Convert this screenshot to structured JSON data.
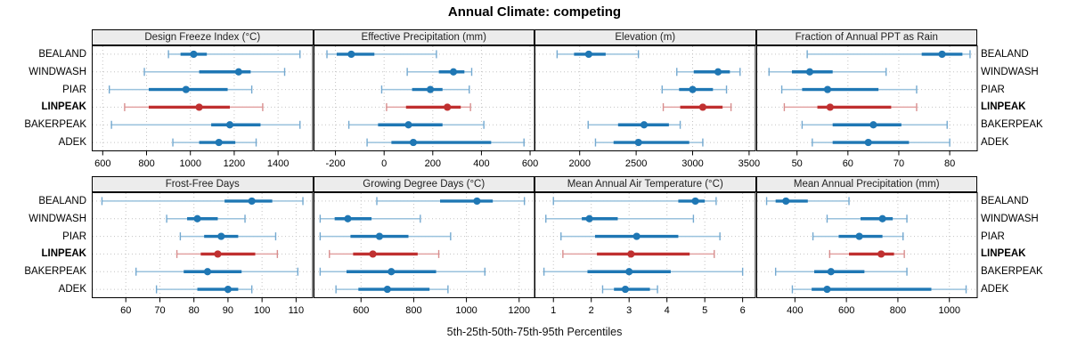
{
  "title": "Annual Climate: competing",
  "caption": "5th-25th-50th-75th-95th Percentiles",
  "colors": {
    "series": "#1f77b4",
    "series_light": "#9ac2dd",
    "series_cap": "#74a9d0",
    "highlight": "#c03030",
    "highlight_light": "#e3a2a2",
    "highlight_cap": "#d88e8e",
    "grid": "#c4c4c4",
    "panel_header_bg": "#ececec",
    "border": "#000000"
  },
  "chart_data": {
    "type": "dot-interval",
    "layout": "2x4 trellis, shared station rows, legend-free",
    "percentiles": [
      5,
      25,
      50,
      75,
      95
    ],
    "categories": [
      "BEALAND",
      "WINDWASH",
      "PIAR",
      "LINPEAK",
      "BAKERPEAK",
      "ADEK"
    ],
    "highlight_category": "LINPEAK",
    "panels": [
      {
        "id": "design-freeze-index",
        "title": "Design Freeze Index (°C)",
        "xlim": [
          550,
          1560
        ],
        "ticks": [
          600,
          800,
          1000,
          1200,
          1400
        ],
        "values": [
          [
            900,
            955,
            1015,
            1075,
            1500
          ],
          [
            790,
            1040,
            1220,
            1275,
            1430
          ],
          [
            630,
            810,
            980,
            1170,
            1280
          ],
          [
            700,
            810,
            1040,
            1180,
            1330
          ],
          [
            640,
            1095,
            1180,
            1320,
            1500
          ],
          [
            920,
            1040,
            1130,
            1205,
            1300
          ]
        ]
      },
      {
        "id": "effective-precipitation",
        "title": "Effective Precipitation (mm)",
        "xlim": [
          -290,
          620
        ],
        "ticks": [
          -200,
          0,
          200,
          400,
          600
        ],
        "values": [
          [
            -235,
            -195,
            -135,
            -40,
            215
          ],
          [
            95,
            225,
            285,
            330,
            360
          ],
          [
            -10,
            115,
            190,
            240,
            350
          ],
          [
            10,
            90,
            260,
            315,
            355
          ],
          [
            -145,
            -25,
            100,
            240,
            410
          ],
          [
            -70,
            30,
            120,
            440,
            575
          ]
        ]
      },
      {
        "id": "elevation",
        "title": "Elevation (m)",
        "xlim": [
          1600,
          3560
        ],
        "ticks": [
          2000,
          2500,
          3000,
          3500
        ],
        "values": [
          [
            1800,
            1950,
            2080,
            2230,
            2520
          ],
          [
            2860,
            3010,
            3225,
            3330,
            3420
          ],
          [
            2730,
            2880,
            3000,
            3180,
            3300
          ],
          [
            2740,
            2890,
            3090,
            3265,
            3340
          ],
          [
            2075,
            2340,
            2570,
            2790,
            2890
          ],
          [
            2140,
            2300,
            2520,
            2970,
            3090
          ]
        ]
      },
      {
        "id": "fraction-annual-ppt-as-rain",
        "title": "Fraction of Annual PPT as Rain",
        "xlim": [
          42,
          85.5
        ],
        "ticks": [
          50,
          60,
          70,
          80
        ],
        "values": [
          [
            52,
            74.5,
            78.5,
            82.5,
            84
          ],
          [
            44.5,
            49,
            52.5,
            57,
            67.5
          ],
          [
            47,
            51,
            56,
            66,
            73.5
          ],
          [
            47.5,
            54,
            56.5,
            68.5,
            73.5
          ],
          [
            51,
            57,
            65,
            70.5,
            79.5
          ],
          [
            53,
            57,
            64,
            72,
            80
          ]
        ]
      },
      {
        "id": "frost-free-days",
        "title": "Frost-Free Days",
        "xlim": [
          50,
          115
        ],
        "ticks": [
          60,
          70,
          80,
          90,
          100,
          110
        ],
        "values": [
          [
            53,
            89,
            97,
            103,
            112
          ],
          [
            72,
            78,
            81,
            87,
            95
          ],
          [
            76,
            83,
            88,
            93,
            104
          ],
          [
            75,
            82,
            87,
            98,
            104.5
          ],
          [
            63,
            77,
            84,
            94,
            110.5
          ],
          [
            69,
            81,
            90,
            93,
            97
          ]
        ]
      },
      {
        "id": "growing-degree-days",
        "title": "Growing Degree Days (°C)",
        "xlim": [
          420,
          1260
        ],
        "ticks": [
          600,
          800,
          1000,
          1200
        ],
        "values": [
          [
            660,
            900,
            1040,
            1100,
            1220
          ],
          [
            445,
            500,
            550,
            640,
            825
          ],
          [
            445,
            560,
            670,
            780,
            940
          ],
          [
            480,
            570,
            645,
            815,
            895
          ],
          [
            445,
            545,
            715,
            885,
            1070
          ],
          [
            505,
            590,
            700,
            860,
            930
          ]
        ]
      },
      {
        "id": "mean-annual-air-temperature",
        "title": "Mean Annual Air Temperature (°C)",
        "xlim": [
          0.5,
          6.35
        ],
        "ticks": [
          1,
          2,
          3,
          4,
          5,
          6
        ],
        "values": [
          [
            1.0,
            4.3,
            4.75,
            5.0,
            5.3
          ],
          [
            0.8,
            1.75,
            1.95,
            2.7,
            4.7
          ],
          [
            1.2,
            2.1,
            3.2,
            4.3,
            5.4
          ],
          [
            1.25,
            2.15,
            3.05,
            4.6,
            5.25
          ],
          [
            0.75,
            1.9,
            3.0,
            4.1,
            6.0
          ],
          [
            2.3,
            2.6,
            2.9,
            3.55,
            3.75
          ]
        ]
      },
      {
        "id": "mean-annual-precipitation",
        "title": "Mean Annual Precipitation (mm)",
        "xlim": [
          250,
          1110
        ],
        "ticks": [
          400,
          600,
          800,
          1000
        ],
        "values": [
          [
            290,
            325,
            365,
            450,
            610
          ],
          [
            525,
            655,
            740,
            780,
            835
          ],
          [
            470,
            570,
            650,
            740,
            820
          ],
          [
            535,
            610,
            735,
            785,
            825
          ],
          [
            325,
            475,
            540,
            670,
            835
          ],
          [
            390,
            465,
            525,
            930,
            1065
          ]
        ]
      }
    ]
  }
}
